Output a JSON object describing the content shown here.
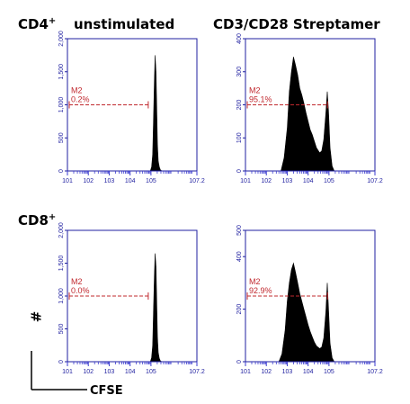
{
  "labels": {
    "row1": "CD4",
    "row1_sup": "+",
    "row2": "CD8",
    "row2_sup": "+",
    "col1": "unstimulated",
    "col2": "CD3/CD28 Streptamer",
    "y_axis": "#",
    "x_axis": "CFSE"
  },
  "colors": {
    "frame": "#1f1fa0",
    "ticks": "#3a3ad0",
    "gate": "#c0282e",
    "fill": "#000000"
  },
  "chart_data": [
    {
      "type": "area",
      "title": "",
      "ylim": [
        0,
        2000
      ],
      "yticks": [
        "0",
        "500",
        "1,000",
        "1,500",
        "2,000"
      ],
      "xticks": [
        "10^1",
        "10^2",
        "10^3",
        "10^4",
        "10^5",
        "10^7.2"
      ],
      "xscale": "log",
      "gate": {
        "name": "M2",
        "percent": "0.2%",
        "level": 1000,
        "x_range": [
          1.0,
          4.87
        ]
      },
      "histogram": {
        "x": [
          4.97,
          5.03,
          5.08,
          5.12,
          5.16,
          5.2,
          5.24,
          5.28,
          5.31,
          5.35,
          5.4,
          5.45,
          5.52
        ],
        "y": [
          0,
          60,
          250,
          750,
          1300,
          1750,
          1500,
          900,
          400,
          150,
          60,
          15,
          0
        ]
      }
    },
    {
      "type": "area",
      "title": "",
      "ylim": [
        0,
        400
      ],
      "yticks": [
        "0",
        "100",
        "200",
        "300",
        "400"
      ],
      "xticks": [
        "10^1",
        "10^2",
        "10^3",
        "10^4",
        "10^5",
        "10^7.2"
      ],
      "xscale": "log",
      "gate": {
        "name": "M2",
        "percent": "95.1%",
        "level": 200,
        "x_range": [
          1.0,
          4.93
        ]
      },
      "histogram": {
        "x": [
          2.7,
          2.85,
          3.0,
          3.1,
          3.2,
          3.3,
          3.4,
          3.5,
          3.6,
          3.7,
          3.8,
          3.9,
          4.0,
          4.1,
          4.2,
          4.3,
          4.4,
          4.55,
          4.65,
          4.75,
          4.85,
          4.92,
          4.98,
          5.05,
          5.15,
          5.25
        ],
        "y": [
          0,
          40,
          130,
          240,
          300,
          345,
          320,
          290,
          250,
          230,
          205,
          175,
          150,
          125,
          110,
          90,
          70,
          55,
          60,
          95,
          175,
          240,
          180,
          70,
          15,
          0
        ]
      }
    },
    {
      "type": "area",
      "title": "",
      "ylim": [
        0,
        2000
      ],
      "yticks": [
        "0",
        "500",
        "1,000",
        "1,500",
        "2,000"
      ],
      "xticks": [
        "10^1",
        "10^2",
        "10^3",
        "10^4",
        "10^5",
        "10^7.2"
      ],
      "xscale": "log",
      "gate": {
        "name": "M2",
        "percent": "0.0%",
        "level": 1000,
        "x_range": [
          1.0,
          4.87
        ]
      },
      "histogram": {
        "x": [
          4.97,
          5.03,
          5.08,
          5.12,
          5.16,
          5.2,
          5.24,
          5.28,
          5.31,
          5.35,
          5.4,
          5.45,
          5.52
        ],
        "y": [
          0,
          60,
          250,
          750,
          1250,
          1650,
          1450,
          850,
          380,
          140,
          50,
          12,
          0
        ]
      }
    },
    {
      "type": "area",
      "title": "",
      "ylim": [
        0,
        500
      ],
      "yticks": [
        "0",
        "200",
        "400",
        "500"
      ],
      "xticks": [
        "10^1",
        "10^2",
        "10^3",
        "10^4",
        "10^5",
        "10^7.2"
      ],
      "xscale": "log",
      "gate": {
        "name": "M2",
        "percent": "92.9%",
        "level": 250,
        "x_range": [
          1.0,
          4.93
        ]
      },
      "histogram": {
        "x": [
          2.6,
          2.75,
          2.9,
          3.0,
          3.1,
          3.2,
          3.3,
          3.4,
          3.5,
          3.6,
          3.7,
          3.8,
          3.9,
          4.0,
          4.1,
          4.2,
          4.3,
          4.4,
          4.55,
          4.65,
          4.75,
          4.85,
          4.92,
          4.98,
          5.05,
          5.15,
          5.25
        ],
        "y": [
          0,
          30,
          120,
          230,
          300,
          350,
          375,
          340,
          300,
          260,
          230,
          200,
          170,
          140,
          115,
          95,
          75,
          60,
          50,
          55,
          90,
          190,
          300,
          200,
          70,
          15,
          0
        ]
      }
    }
  ]
}
